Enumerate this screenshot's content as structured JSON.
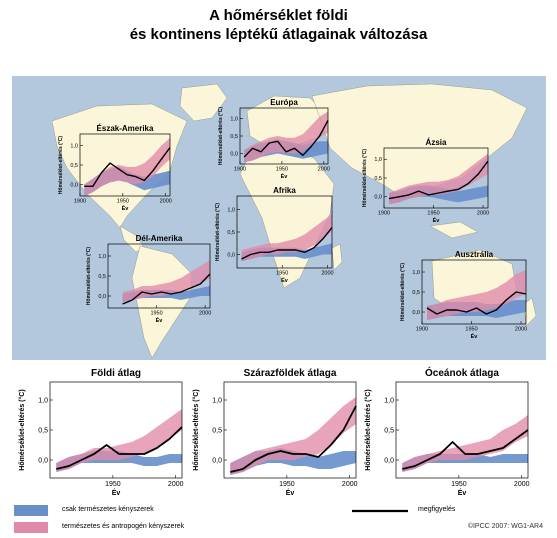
{
  "title": {
    "line1": "A hőmérséklet földi",
    "line2": "és kontinens léptékű átlagainak változása"
  },
  "colors": {
    "natural": "#6a90cc",
    "anthropogenic": "#e08aa8",
    "observed": "#000000",
    "ocean": "#b3c8dd",
    "land": "#fbf6d9",
    "plot_bg": "#ffffff"
  },
  "legend": {
    "natural_label": "csak természetes kényszerek",
    "anthropogenic_label": "természetes és antropogén kényszerek",
    "observed_label": "megfigyelés"
  },
  "credit": "©IPCC 2007: WG1-AR4",
  "chart_data": [
    {
      "type": "area",
      "title": "Észak-Amerika",
      "xlabel": "Év",
      "ylabel": "Hőmérséklet-eltérés (°C)",
      "xlim": [
        1900,
        2005
      ],
      "ylim": [
        -0.3,
        1.3
      ],
      "yticks": [
        "1,0",
        "0,5",
        "0,0"
      ],
      "xticks": [
        "1900",
        "1950",
        "2000"
      ],
      "x": [
        1905,
        1915,
        1925,
        1935,
        1945,
        1955,
        1965,
        1975,
        1985,
        1995,
        2005
      ],
      "natural_lo": [
        -0.3,
        -0.2,
        -0.05,
        0.05,
        0.1,
        0.05,
        -0.05,
        -0.15,
        -0.1,
        -0.05,
        0.0
      ],
      "natural_hi": [
        0.0,
        0.15,
        0.3,
        0.4,
        0.45,
        0.35,
        0.25,
        0.2,
        0.25,
        0.3,
        0.35
      ],
      "anthro_lo": [
        -0.3,
        -0.2,
        -0.05,
        0.05,
        0.1,
        0.05,
        0.0,
        0.05,
        0.2,
        0.45,
        0.65
      ],
      "anthro_hi": [
        0.0,
        0.15,
        0.3,
        0.45,
        0.5,
        0.45,
        0.45,
        0.55,
        0.75,
        1.0,
        1.2
      ],
      "observed": [
        -0.05,
        -0.05,
        0.3,
        0.55,
        0.4,
        0.25,
        0.2,
        0.1,
        0.35,
        0.65,
        0.95
      ]
    },
    {
      "type": "area",
      "title": "Európa",
      "xlabel": "Év",
      "ylabel": "Hőmérséklet-eltérés (°C)",
      "xlim": [
        1900,
        2005
      ],
      "ylim": [
        -0.3,
        1.3
      ],
      "yticks": [
        "1,0",
        "0,5",
        "0,0"
      ],
      "xticks": [
        "1900",
        "1950",
        "2000"
      ],
      "x": [
        1905,
        1915,
        1925,
        1935,
        1945,
        1955,
        1965,
        1975,
        1985,
        1995,
        2005
      ],
      "natural_lo": [
        -0.25,
        -0.2,
        -0.1,
        -0.05,
        0.0,
        -0.05,
        -0.1,
        -0.15,
        -0.1,
        -0.05,
        0.0
      ],
      "natural_hi": [
        0.1,
        0.2,
        0.3,
        0.35,
        0.4,
        0.35,
        0.3,
        0.25,
        0.3,
        0.35,
        0.35
      ],
      "anthro_lo": [
        -0.25,
        -0.2,
        -0.1,
        0.0,
        0.05,
        0.0,
        0.0,
        0.05,
        0.25,
        0.45,
        0.6
      ],
      "anthro_hi": [
        0.1,
        0.25,
        0.35,
        0.45,
        0.5,
        0.45,
        0.45,
        0.55,
        0.8,
        1.05,
        1.2
      ],
      "observed": [
        -0.1,
        0.15,
        0.05,
        0.3,
        0.35,
        0.05,
        0.15,
        -0.05,
        0.2,
        0.5,
        0.95
      ]
    },
    {
      "type": "area",
      "title": "Ázsia",
      "xlabel": "Év",
      "ylabel": "Hőmérséklet-eltérés (°C)",
      "xlim": [
        1900,
        2005
      ],
      "ylim": [
        -0.3,
        1.3
      ],
      "yticks": [
        "1,0",
        "0,5",
        "0,0"
      ],
      "xticks": [
        "1900",
        "1950",
        "2000"
      ],
      "x": [
        1905,
        1915,
        1925,
        1935,
        1945,
        1955,
        1965,
        1975,
        1985,
        1995,
        2005
      ],
      "natural_lo": [
        -0.2,
        -0.15,
        -0.05,
        0.0,
        0.0,
        -0.05,
        -0.1,
        -0.15,
        -0.1,
        -0.05,
        0.0
      ],
      "natural_hi": [
        0.1,
        0.15,
        0.25,
        0.3,
        0.3,
        0.25,
        0.2,
        0.15,
        0.2,
        0.25,
        0.3
      ],
      "anthro_lo": [
        -0.2,
        -0.15,
        -0.05,
        0.0,
        0.05,
        0.05,
        0.1,
        0.15,
        0.3,
        0.45,
        0.6
      ],
      "anthro_hi": [
        0.1,
        0.2,
        0.3,
        0.35,
        0.4,
        0.4,
        0.45,
        0.55,
        0.75,
        0.95,
        1.15
      ],
      "observed": [
        -0.05,
        0.0,
        0.05,
        0.15,
        0.05,
        0.1,
        0.15,
        0.2,
        0.35,
        0.6,
        0.95
      ]
    },
    {
      "type": "area",
      "title": "Afrika",
      "xlabel": "Év",
      "ylabel": "Hőmérséklet-eltérés (°C)",
      "xlim": [
        1900,
        2005
      ],
      "ylim": [
        -0.3,
        1.3
      ],
      "yticks": [
        "1,0",
        "0,5",
        "0,0"
      ],
      "xticks": [
        "1950",
        "2000"
      ],
      "x": [
        1905,
        1915,
        1925,
        1935,
        1945,
        1955,
        1965,
        1975,
        1985,
        1995,
        2005
      ],
      "natural_lo": [
        -0.15,
        -0.1,
        -0.05,
        -0.05,
        -0.05,
        -0.05,
        -0.05,
        -0.1,
        -0.05,
        0.0,
        0.0
      ],
      "natural_hi": [
        0.05,
        0.1,
        0.15,
        0.15,
        0.15,
        0.15,
        0.15,
        0.1,
        0.15,
        0.2,
        0.25
      ],
      "anthro_lo": [
        -0.15,
        -0.1,
        -0.05,
        0.0,
        0.0,
        0.05,
        0.05,
        0.1,
        0.2,
        0.35,
        0.5
      ],
      "anthro_hi": [
        0.1,
        0.15,
        0.2,
        0.25,
        0.25,
        0.3,
        0.35,
        0.45,
        0.6,
        0.75,
        0.9
      ],
      "observed": [
        -0.1,
        0.0,
        0.05,
        0.05,
        0.1,
        0.1,
        0.1,
        0.05,
        0.15,
        0.35,
        0.6
      ]
    },
    {
      "type": "area",
      "title": "Dél-Amerika",
      "xlabel": "Év",
      "ylabel": "Hőmérséklet-eltérés (°C)",
      "xlim": [
        1900,
        2005
      ],
      "ylim": [
        -0.3,
        1.3
      ],
      "yticks": [
        "1,0",
        "0,5",
        "0,0"
      ],
      "xticks": [
        "1950",
        "2000"
      ],
      "x": [
        1915,
        1925,
        1935,
        1945,
        1955,
        1965,
        1975,
        1985,
        1995,
        2005
      ],
      "natural_lo": [
        -0.15,
        -0.1,
        -0.05,
        -0.05,
        -0.05,
        -0.05,
        -0.1,
        -0.05,
        0.0,
        0.0
      ],
      "natural_hi": [
        0.05,
        0.1,
        0.15,
        0.15,
        0.15,
        0.15,
        0.1,
        0.15,
        0.2,
        0.25
      ],
      "anthro_lo": [
        -0.15,
        -0.1,
        -0.05,
        0.0,
        0.0,
        0.05,
        0.1,
        0.2,
        0.3,
        0.45
      ],
      "anthro_hi": [
        0.1,
        0.15,
        0.25,
        0.25,
        0.3,
        0.35,
        0.45,
        0.6,
        0.75,
        0.9
      ],
      "observed": [
        -0.2,
        -0.1,
        0.1,
        0.05,
        0.1,
        0.05,
        0.1,
        0.2,
        0.3,
        0.55
      ]
    },
    {
      "type": "area",
      "title": "Ausztrália",
      "xlabel": "Év",
      "ylabel": "Hőmérséklet-eltérés (°C)",
      "xlim": [
        1900,
        2005
      ],
      "ylim": [
        -0.3,
        1.3
      ],
      "yticks": [
        "1,0",
        "0,5",
        "0,0"
      ],
      "xticks": [
        "1900",
        "1950",
        "2000"
      ],
      "x": [
        1905,
        1915,
        1925,
        1935,
        1945,
        1955,
        1965,
        1975,
        1985,
        1995,
        2005
      ],
      "natural_lo": [
        -0.2,
        -0.15,
        -0.1,
        -0.1,
        -0.1,
        -0.1,
        -0.1,
        -0.15,
        -0.1,
        -0.05,
        0.0
      ],
      "natural_hi": [
        0.15,
        0.2,
        0.25,
        0.25,
        0.25,
        0.25,
        0.2,
        0.2,
        0.25,
        0.3,
        0.3
      ],
      "anthro_lo": [
        -0.2,
        -0.15,
        -0.1,
        -0.05,
        0.0,
        0.0,
        0.05,
        0.1,
        0.2,
        0.35,
        0.45
      ],
      "anthro_hi": [
        0.15,
        0.2,
        0.3,
        0.35,
        0.4,
        0.45,
        0.5,
        0.6,
        0.75,
        0.95,
        1.05
      ],
      "observed": [
        0.1,
        -0.05,
        0.05,
        0.05,
        0.0,
        0.1,
        -0.05,
        0.05,
        0.3,
        0.5,
        0.45
      ]
    },
    {
      "type": "area",
      "title": "Földi átlag",
      "xlabel": "Év",
      "ylabel": "Hőmérséklet-eltérés (°C)",
      "xlim": [
        1900,
        2005
      ],
      "ylim": [
        -0.3,
        1.3
      ],
      "yticks": [
        "1,0",
        "0,5",
        "0,0"
      ],
      "xticks": [
        "1950",
        "2000"
      ],
      "x": [
        1905,
        1915,
        1925,
        1935,
        1945,
        1955,
        1965,
        1975,
        1985,
        1995,
        2005
      ],
      "natural_lo": [
        -0.2,
        -0.15,
        -0.05,
        -0.05,
        -0.05,
        -0.05,
        -0.05,
        -0.1,
        -0.1,
        -0.05,
        -0.05
      ],
      "natural_hi": [
        -0.05,
        0.05,
        0.1,
        0.15,
        0.15,
        0.15,
        0.1,
        0.05,
        0.05,
        0.1,
        0.1
      ],
      "anthro_lo": [
        -0.2,
        -0.15,
        -0.05,
        0.0,
        0.0,
        0.0,
        0.05,
        0.1,
        0.2,
        0.35,
        0.5
      ],
      "anthro_hi": [
        -0.05,
        0.05,
        0.1,
        0.2,
        0.2,
        0.25,
        0.3,
        0.4,
        0.55,
        0.7,
        0.85
      ],
      "observed": [
        -0.15,
        -0.1,
        0.0,
        0.1,
        0.25,
        0.1,
        0.1,
        0.1,
        0.2,
        0.35,
        0.55
      ]
    },
    {
      "type": "area",
      "title": "Szárazföldek átlaga",
      "xlabel": "Év",
      "ylabel": "Hőmérséklet-eltérés (°C)",
      "xlim": [
        1900,
        2005
      ],
      "ylim": [
        -0.3,
        1.3
      ],
      "yticks": [
        "1,0",
        "0,5",
        "0,0"
      ],
      "xticks": [
        "1950",
        "2000"
      ],
      "x": [
        1905,
        1915,
        1925,
        1935,
        1945,
        1955,
        1965,
        1975,
        1985,
        1995,
        2005
      ],
      "natural_lo": [
        -0.25,
        -0.2,
        -0.1,
        -0.05,
        -0.05,
        -0.1,
        -0.1,
        -0.15,
        -0.15,
        -0.1,
        -0.05
      ],
      "natural_hi": [
        -0.05,
        0.05,
        0.15,
        0.15,
        0.2,
        0.15,
        0.1,
        0.05,
        0.1,
        0.15,
        0.15
      ],
      "anthro_lo": [
        -0.25,
        -0.2,
        -0.1,
        0.0,
        0.0,
        0.0,
        0.05,
        0.1,
        0.25,
        0.45,
        0.6
      ],
      "anthro_hi": [
        -0.05,
        0.05,
        0.15,
        0.2,
        0.25,
        0.3,
        0.35,
        0.5,
        0.7,
        0.9,
        1.05
      ],
      "observed": [
        -0.2,
        -0.15,
        0.0,
        0.1,
        0.15,
        0.1,
        0.1,
        0.05,
        0.25,
        0.5,
        0.9
      ]
    },
    {
      "type": "area",
      "title": "Óceánok átlaga",
      "xlabel": "Év",
      "ylabel": "Hőmérséklet-eltérés (°C)",
      "xlim": [
        1900,
        2005
      ],
      "ylim": [
        -0.3,
        1.3
      ],
      "yticks": [
        "1,0",
        "0,5",
        "0,0"
      ],
      "xticks": [
        "1950",
        "2000"
      ],
      "x": [
        1905,
        1915,
        1925,
        1935,
        1945,
        1955,
        1965,
        1975,
        1985,
        1995,
        2005
      ],
      "natural_lo": [
        -0.2,
        -0.15,
        -0.05,
        -0.05,
        -0.05,
        -0.05,
        -0.05,
        -0.05,
        -0.05,
        -0.05,
        -0.05
      ],
      "natural_hi": [
        -0.05,
        0.05,
        0.1,
        0.1,
        0.1,
        0.1,
        0.1,
        0.05,
        0.1,
        0.1,
        0.1
      ],
      "anthro_lo": [
        -0.2,
        -0.15,
        -0.05,
        0.0,
        0.0,
        0.0,
        0.05,
        0.1,
        0.15,
        0.3,
        0.4
      ],
      "anthro_hi": [
        -0.05,
        0.05,
        0.1,
        0.15,
        0.2,
        0.25,
        0.3,
        0.35,
        0.5,
        0.6,
        0.75
      ],
      "observed": [
        -0.15,
        -0.1,
        0.0,
        0.1,
        0.3,
        0.1,
        0.1,
        0.15,
        0.2,
        0.35,
        0.5
      ]
    }
  ]
}
